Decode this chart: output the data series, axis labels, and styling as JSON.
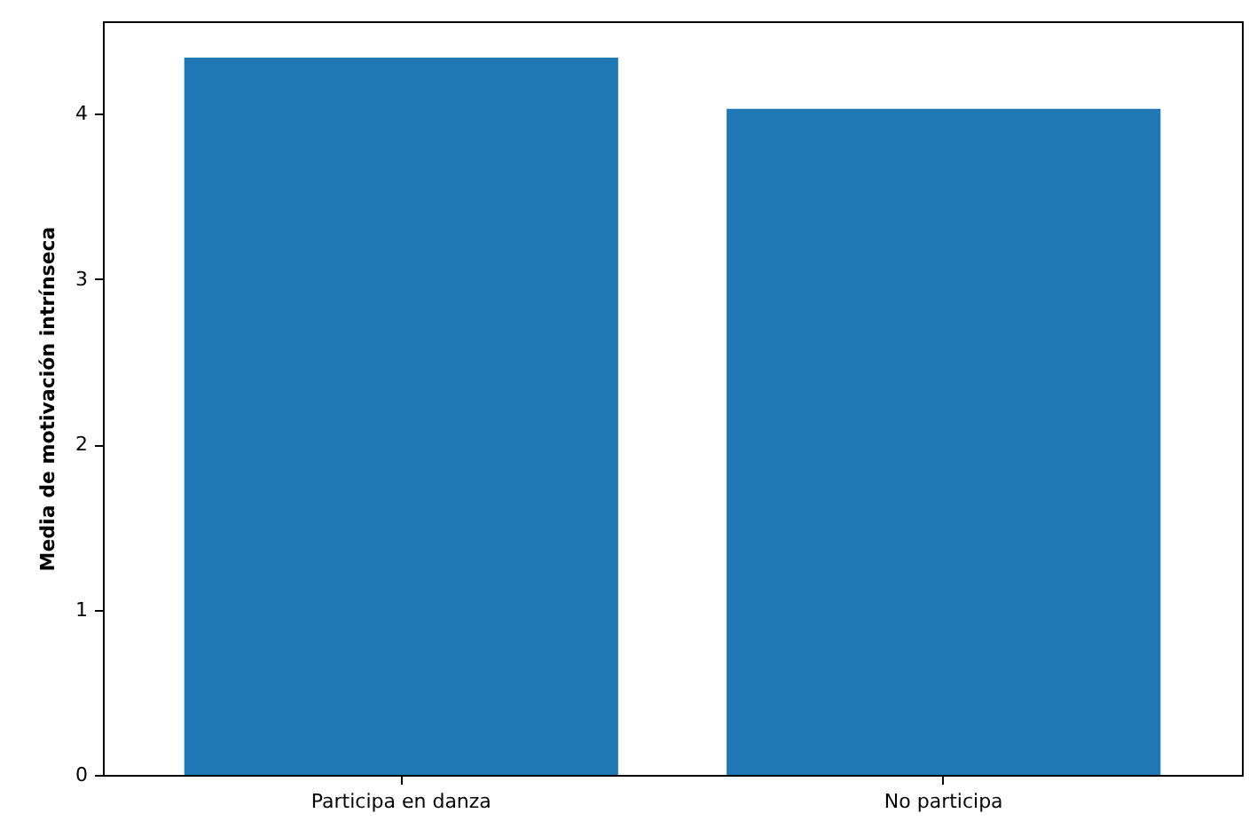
{
  "chart_data": {
    "type": "bar",
    "ylabel": "Media de motivación intrínseca",
    "categories": [
      "Participa en danza",
      "No participa"
    ],
    "values": [
      4.34,
      4.03
    ],
    "color": "#1f77b4",
    "ylim": [
      0,
      4.56
    ],
    "yticks": [
      0,
      1,
      2,
      3,
      4
    ],
    "grid": false
  }
}
